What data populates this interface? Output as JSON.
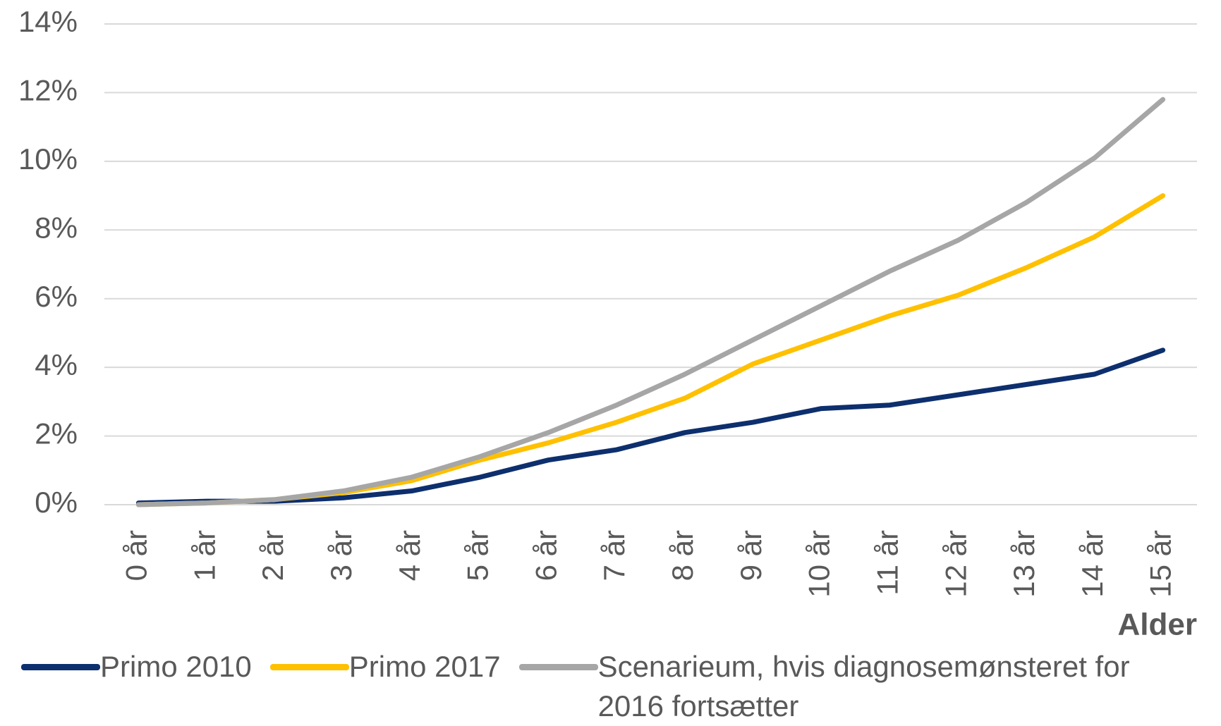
{
  "chart_data": {
    "type": "line",
    "x_label": "Alder",
    "categories": [
      "0 år",
      "1 år",
      "2 år",
      "3 år",
      "4 år",
      "5 år",
      "6 år",
      "7 år",
      "8 år",
      "9 år",
      "10 år",
      "11 år",
      "12 år",
      "13 år",
      "14 år",
      "15 år"
    ],
    "series": [
      {
        "name": "Primo 2010",
        "color": "#0d2f6e",
        "values": [
          0.05,
          0.1,
          0.1,
          0.2,
          0.4,
          0.8,
          1.3,
          1.6,
          2.1,
          2.4,
          2.8,
          2.9,
          3.2,
          3.5,
          3.8,
          4.5
        ]
      },
      {
        "name": "Primo 2017",
        "color": "#ffc000",
        "values": [
          0,
          0.05,
          0.15,
          0.35,
          0.7,
          1.3,
          1.8,
          2.4,
          3.1,
          4.1,
          4.8,
          5.5,
          6.1,
          6.9,
          7.8,
          9.0
        ]
      },
      {
        "name": "Scenarieum, hvis diagnosemønsteret for 2016 fortsætter",
        "color": "#a6a6a6",
        "values": [
          0,
          0.05,
          0.15,
          0.4,
          0.8,
          1.4,
          2.1,
          2.9,
          3.8,
          4.8,
          5.8,
          6.8,
          7.7,
          8.8,
          10.1,
          11.8
        ]
      }
    ],
    "ylim": [
      0,
      14
    ],
    "yticks": [
      {
        "value": 0,
        "label": "0%"
      },
      {
        "value": 2,
        "label": "2%"
      },
      {
        "value": 4,
        "label": "4%"
      },
      {
        "value": 6,
        "label": "6%"
      },
      {
        "value": 8,
        "label": "8%"
      },
      {
        "value": 10,
        "label": "10%"
      },
      {
        "value": 12,
        "label": "12%"
      },
      {
        "value": 14,
        "label": "14%"
      }
    ],
    "grid": true,
    "legend": "bottom"
  }
}
